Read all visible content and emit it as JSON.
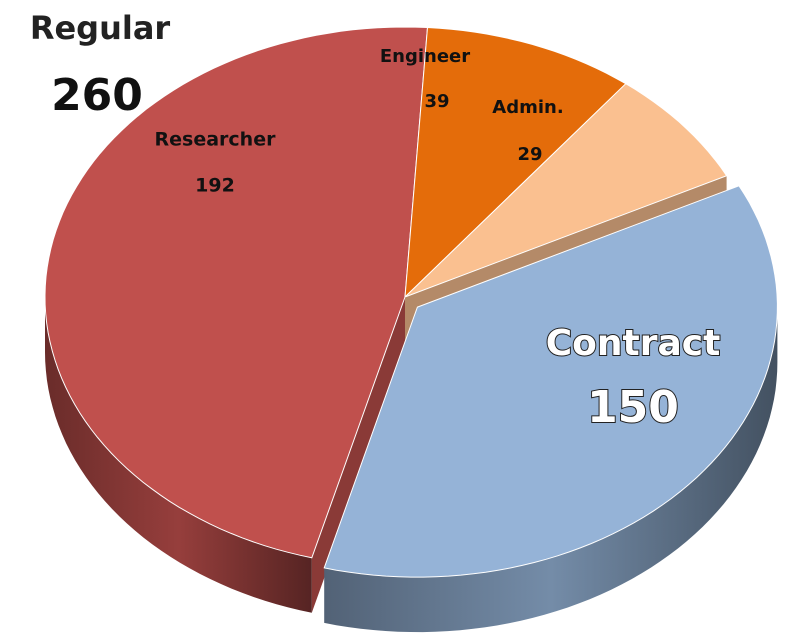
{
  "chart_data": {
    "type": "pie",
    "categories": [
      "Researcher",
      "Engineer",
      "Admin.",
      "Contract"
    ],
    "values": [
      192,
      39,
      29,
      150
    ],
    "colors": [
      "#c0504d",
      "#e46c0a",
      "#fac090",
      "#95b3d7"
    ],
    "exploded": [
      false,
      false,
      false,
      true
    ],
    "groups": [
      {
        "name": "Regular",
        "value": 260
      }
    ]
  }
}
